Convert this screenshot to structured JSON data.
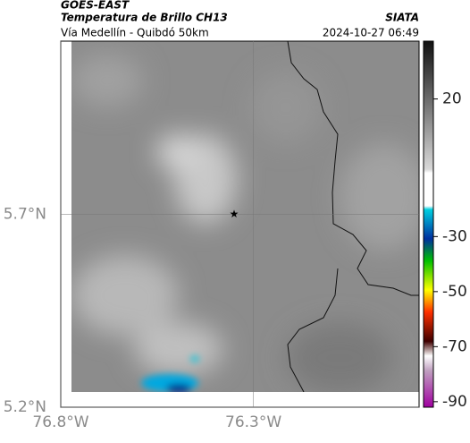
{
  "header": {
    "agency": "GOES-EAST",
    "product": "Temperatura de Brillo CH13",
    "source": "SIATA",
    "region": "Vía Medellín - Quibdó 50km",
    "datetime": "2024-10-27 06:49"
  },
  "map": {
    "xlim": [
      -76.8,
      -75.87
    ],
    "ylim": [
      5.2,
      6.15
    ],
    "xticks": [
      {
        "value": -76.8,
        "label": "76.8°W"
      },
      {
        "value": -76.3,
        "label": "76.3°W"
      }
    ],
    "yticks": [
      {
        "value": 5.2,
        "label": "5.2°N"
      },
      {
        "value": 5.7,
        "label": "5.7°N"
      }
    ],
    "grid": true,
    "marker": {
      "lon": -76.35,
      "lat": 5.7
    }
  },
  "colorbar": {
    "lim": [
      -92,
      41
    ],
    "ticks": [
      20,
      -30,
      -50,
      -70,
      -90
    ]
  }
}
